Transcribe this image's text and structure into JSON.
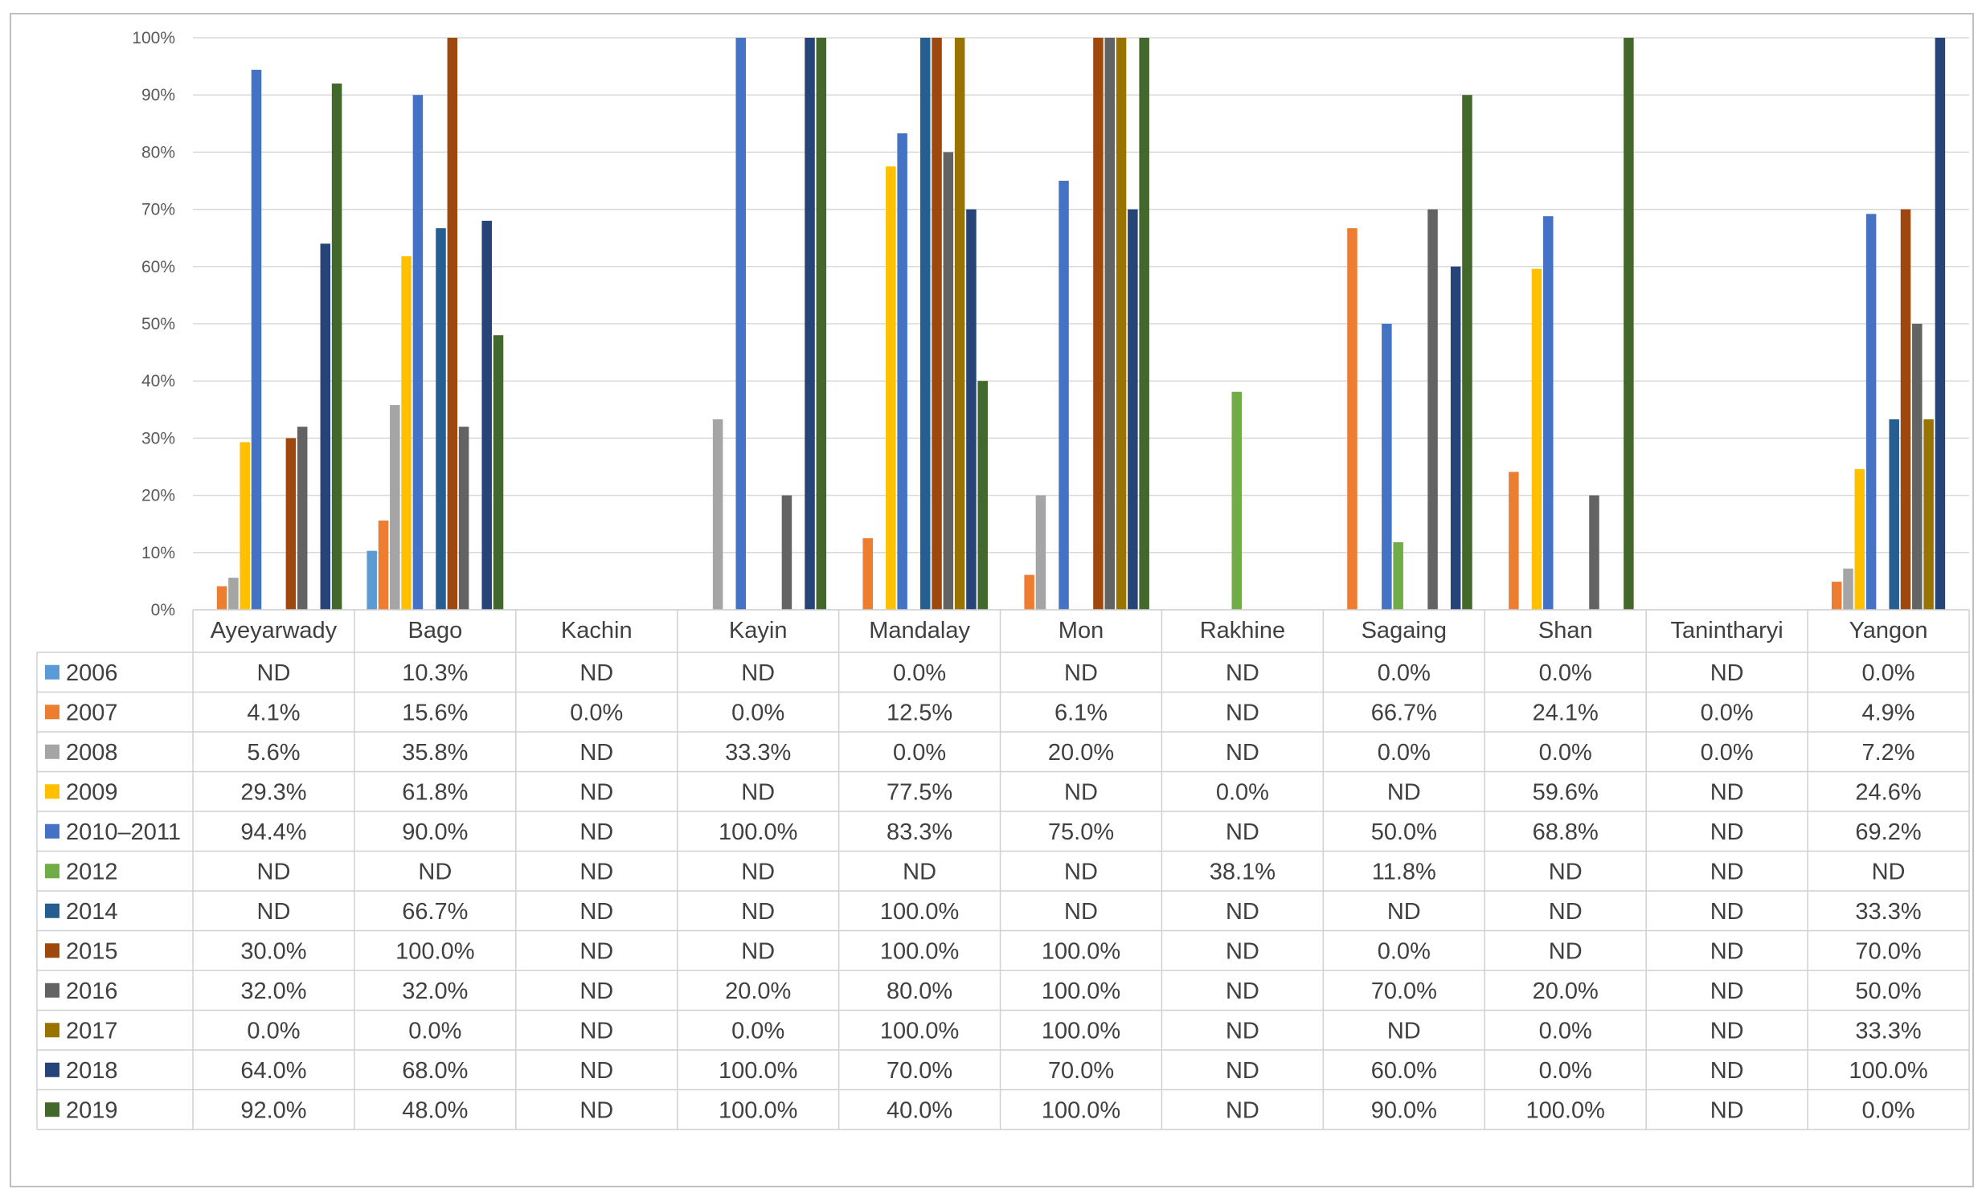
{
  "chart_data": {
    "type": "bar",
    "title": "",
    "xlabel": "",
    "ylabel": "",
    "ylim": [
      0,
      100
    ],
    "yticks": [
      "0%",
      "10%",
      "20%",
      "30%",
      "40%",
      "50%",
      "60%",
      "70%",
      "80%",
      "90%",
      "100%"
    ],
    "categories": [
      "Ayeyarwady",
      "Bago",
      "Kachin",
      "Kayin",
      "Mandalay",
      "Mon",
      "Rakhine",
      "Sagaing",
      "Shan",
      "Tanintharyi",
      "Yangon"
    ],
    "legend_position": "table-left",
    "series": [
      {
        "name": "2006",
        "color": "#5b9bd5",
        "values": [
          null,
          10.3,
          null,
          null,
          0.0,
          null,
          null,
          0.0,
          0.0,
          null,
          0.0
        ],
        "labels": [
          "ND",
          "10.3%",
          "ND",
          "ND",
          "0.0%",
          "ND",
          "ND",
          "0.0%",
          "0.0%",
          "ND",
          "0.0%"
        ]
      },
      {
        "name": "2007",
        "color": "#ed7d31",
        "values": [
          4.1,
          15.6,
          0.0,
          0.0,
          12.5,
          6.1,
          null,
          66.7,
          24.1,
          0.0,
          4.9
        ],
        "labels": [
          "4.1%",
          "15.6%",
          "0.0%",
          "0.0%",
          "12.5%",
          "6.1%",
          "ND",
          "66.7%",
          "24.1%",
          "0.0%",
          "4.9%"
        ]
      },
      {
        "name": "2008",
        "color": "#a5a5a5",
        "values": [
          5.6,
          35.8,
          null,
          33.3,
          0.0,
          20.0,
          null,
          0.0,
          0.0,
          0.0,
          7.2
        ],
        "labels": [
          "5.6%",
          "35.8%",
          "ND",
          "33.3%",
          "0.0%",
          "20.0%",
          "ND",
          "0.0%",
          "0.0%",
          "0.0%",
          "7.2%"
        ]
      },
      {
        "name": "2009",
        "color": "#ffc000",
        "values": [
          29.3,
          61.8,
          null,
          null,
          77.5,
          null,
          0.0,
          null,
          59.6,
          null,
          24.6
        ],
        "labels": [
          "29.3%",
          "61.8%",
          "ND",
          "ND",
          "77.5%",
          "ND",
          "0.0%",
          "ND",
          "59.6%",
          "ND",
          "24.6%"
        ]
      },
      {
        "name": "2010–2011",
        "color": "#4472c4",
        "values": [
          94.4,
          90.0,
          null,
          100.0,
          83.3,
          75.0,
          null,
          50.0,
          68.8,
          null,
          69.2
        ],
        "labels": [
          "94.4%",
          "90.0%",
          "ND",
          "100.0%",
          "83.3%",
          "75.0%",
          "ND",
          "50.0%",
          "68.8%",
          "ND",
          "69.2%"
        ]
      },
      {
        "name": "2012",
        "color": "#70ad47",
        "values": [
          null,
          null,
          null,
          null,
          null,
          null,
          38.1,
          11.8,
          null,
          null,
          null
        ],
        "labels": [
          "ND",
          "ND",
          "ND",
          "ND",
          "ND",
          "ND",
          "38.1%",
          "11.8%",
          "ND",
          "ND",
          "ND"
        ]
      },
      {
        "name": "2014",
        "color": "#255e91",
        "values": [
          null,
          66.7,
          null,
          null,
          100.0,
          null,
          null,
          null,
          null,
          null,
          33.3
        ],
        "labels": [
          "ND",
          "66.7%",
          "ND",
          "ND",
          "100.0%",
          "ND",
          "ND",
          "ND",
          "ND",
          "ND",
          "33.3%"
        ]
      },
      {
        "name": "2015",
        "color": "#9e480e",
        "values": [
          30.0,
          100.0,
          null,
          null,
          100.0,
          100.0,
          null,
          0.0,
          null,
          null,
          70.0
        ],
        "labels": [
          "30.0%",
          "100.0%",
          "ND",
          "ND",
          "100.0%",
          "100.0%",
          "ND",
          "0.0%",
          "ND",
          "ND",
          "70.0%"
        ]
      },
      {
        "name": "2016",
        "color": "#636363",
        "values": [
          32.0,
          32.0,
          null,
          20.0,
          80.0,
          100.0,
          null,
          70.0,
          20.0,
          null,
          50.0
        ],
        "labels": [
          "32.0%",
          "32.0%",
          "ND",
          "20.0%",
          "80.0%",
          "100.0%",
          "ND",
          "70.0%",
          "20.0%",
          "ND",
          "50.0%"
        ]
      },
      {
        "name": "2017",
        "color": "#997300",
        "values": [
          0.0,
          0.0,
          null,
          0.0,
          100.0,
          100.0,
          null,
          null,
          0.0,
          null,
          33.3
        ],
        "labels": [
          "0.0%",
          "0.0%",
          "ND",
          "0.0%",
          "100.0%",
          "100.0%",
          "ND",
          "ND",
          "0.0%",
          "ND",
          "33.3%"
        ]
      },
      {
        "name": "2018",
        "color": "#264478",
        "values": [
          64.0,
          68.0,
          null,
          100.0,
          70.0,
          70.0,
          null,
          60.0,
          0.0,
          null,
          100.0
        ],
        "labels": [
          "64.0%",
          "68.0%",
          "ND",
          "100.0%",
          "70.0%",
          "70.0%",
          "ND",
          "60.0%",
          "0.0%",
          "ND",
          "100.0%"
        ]
      },
      {
        "name": "2019",
        "color": "#43682b",
        "values": [
          92.0,
          48.0,
          null,
          100.0,
          40.0,
          100.0,
          null,
          90.0,
          100.0,
          null,
          0.0
        ],
        "labels": [
          "92.0%",
          "48.0%",
          "ND",
          "100.0%",
          "40.0%",
          "100.0%",
          "ND",
          "90.0%",
          "100.0%",
          "ND",
          "0.0%"
        ]
      }
    ]
  }
}
